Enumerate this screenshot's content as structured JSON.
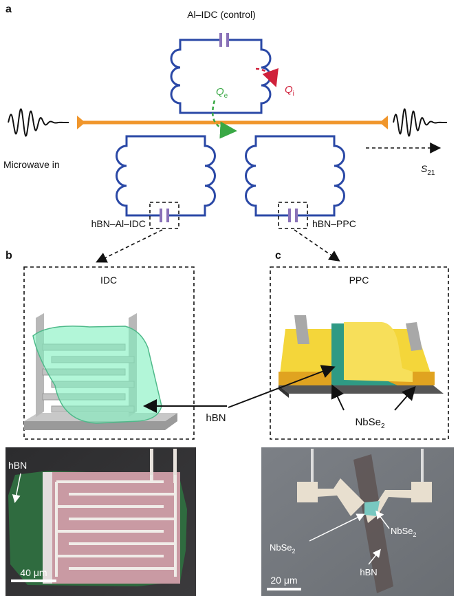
{
  "panel_a": {
    "label": "a",
    "control_resonator": "Al–IDC (control)",
    "q_i": {
      "symbol": "Q",
      "subscript": "i"
    },
    "q_e": {
      "symbol": "Q",
      "subscript": "e"
    },
    "input": "Microwave in",
    "output": {
      "symbol": "S",
      "subscript": "21"
    },
    "left_resonator": "hBN–Al–IDC",
    "right_resonator": "hBN–PPC"
  },
  "panel_b": {
    "label": "b",
    "title": "IDC",
    "photo": {
      "hbn": "hBN",
      "scale_bar": "40 μm"
    }
  },
  "panel_c": {
    "label": "c",
    "title": "PPC",
    "photo": {
      "nbse2_left": {
        "symbol": "NbSe",
        "subscript": "2"
      },
      "nbse2_right": {
        "symbol": "NbSe",
        "subscript": "2"
      },
      "hbn": "hBN",
      "scale_bar": "20 μm"
    }
  },
  "shared_labels": {
    "hbn": "hBN",
    "nbse2": {
      "symbol": "NbSe",
      "subscript": "2"
    }
  }
}
